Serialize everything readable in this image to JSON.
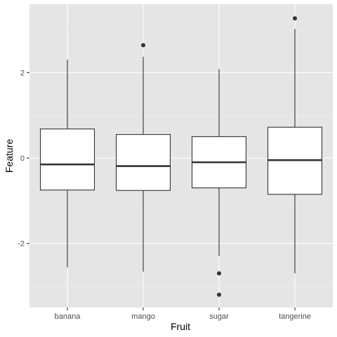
{
  "chart_data": {
    "type": "boxplot",
    "title": "",
    "xlabel": "Fruit",
    "ylabel": "Feature",
    "categories": [
      "banana",
      "mango",
      "sugar",
      "tangerine"
    ],
    "ylim": [
      -3.5,
      3.6
    ],
    "yticks": [
      -2,
      0,
      2
    ],
    "ytick_labels": [
      "-2",
      "0",
      "2"
    ],
    "grid": true,
    "legend": "none",
    "boxes": [
      {
        "category": "banana",
        "whisker_low": -2.56,
        "q1": -0.75,
        "median": -0.15,
        "q3": 0.68,
        "whisker_high": 2.3,
        "outliers": []
      },
      {
        "category": "mango",
        "whisker_low": -2.66,
        "q1": -0.76,
        "median": -0.19,
        "q3": 0.55,
        "whisker_high": 2.37,
        "outliers": [
          2.64
        ]
      },
      {
        "category": "sugar",
        "whisker_low": -2.3,
        "q1": -0.7,
        "median": -0.1,
        "q3": 0.5,
        "whisker_high": 2.08,
        "outliers": [
          -2.7,
          -3.2
        ]
      },
      {
        "category": "tangerine",
        "whisker_low": -2.7,
        "q1": -0.85,
        "median": -0.05,
        "q3": 0.72,
        "whisker_high": 3.02,
        "outliers": [
          3.27
        ]
      }
    ],
    "colors": {
      "panel_background": "#e5e5e5",
      "grid_major": "#ffffff",
      "grid_minor": "#f2f2f2",
      "box_fill": "#ffffff",
      "box_stroke": "#333333",
      "outlier": "#333333"
    }
  }
}
